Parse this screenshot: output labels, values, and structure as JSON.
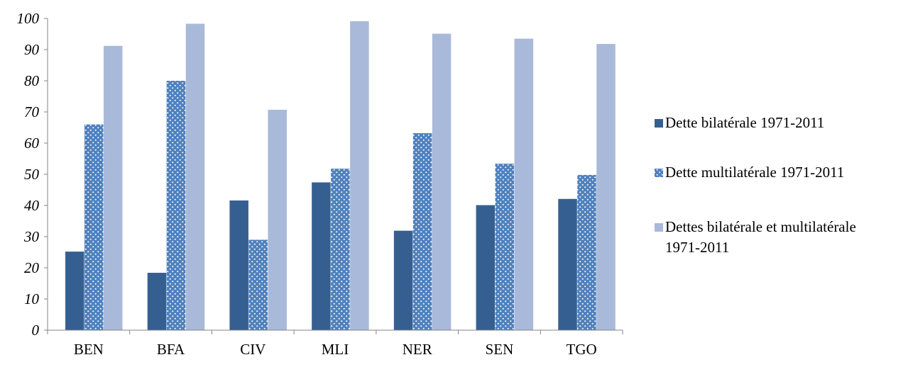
{
  "chart_data": {
    "type": "bar",
    "title": "",
    "xlabel": "",
    "ylabel": "",
    "ylim": [
      0,
      100
    ],
    "ytick_step": 10,
    "yticks": [
      "0",
      "10",
      "20",
      "30",
      "40",
      "50",
      "60",
      "70",
      "80",
      "90",
      "100"
    ],
    "grid": false,
    "legend_position": "right",
    "categories": [
      "BEN",
      "BFA",
      "CIV",
      "MLI",
      "NER",
      "SEN",
      "TGO"
    ],
    "series": [
      {
        "name": "Dette bilatérale 1971-2011",
        "legend_lines": [
          "Dette bilatérale 1971-2011"
        ],
        "color": "#365f91",
        "pattern": "solid",
        "values": [
          25.2,
          18.4,
          41.6,
          47.4,
          31.9,
          40.1,
          42.1
        ]
      },
      {
        "name": "Dette multilatérale 1971-2011",
        "legend_lines": [
          "Dette multilatérale 1971-2011"
        ],
        "color": "#4f81bd",
        "pattern": "dotted",
        "values": [
          66.0,
          80.0,
          29.0,
          51.8,
          63.2,
          53.4,
          49.8
        ]
      },
      {
        "name": "Dettes bilatérale et multilatérale 1971-2011",
        "legend_lines": [
          "Dettes bilatérale et multilatérale",
          "1971-2011"
        ],
        "color": "#a9b9d9",
        "pattern": "solid",
        "values": [
          91.2,
          98.3,
          70.7,
          99.1,
          95.1,
          93.5,
          91.8
        ]
      }
    ]
  }
}
